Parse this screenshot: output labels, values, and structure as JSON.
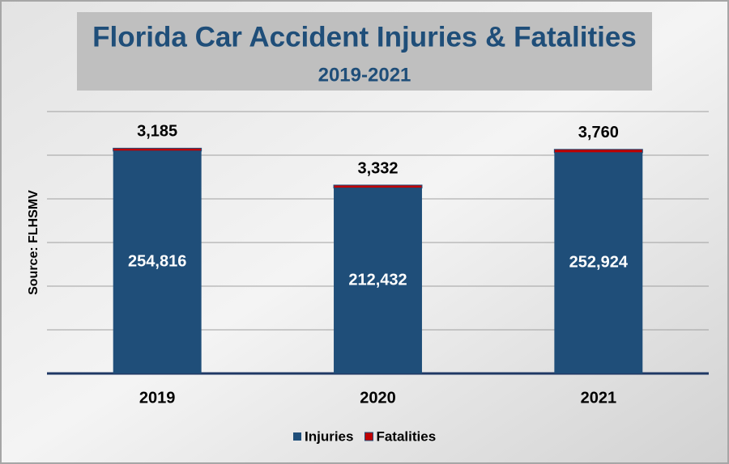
{
  "chart_data": {
    "type": "stacked_bar",
    "title": "Florida Car Accident Injuries & Fatalities",
    "subtitle": "2019-2021",
    "annotation": "Source: FLHSMV",
    "categories": [
      "2019",
      "2020",
      "2021"
    ],
    "series": [
      {
        "name": "Injuries",
        "color": "#1f4e79",
        "values": [
          254816,
          212432,
          252924
        ],
        "value_labels": [
          "254,816",
          "212,432",
          "252,924"
        ]
      },
      {
        "name": "Fatalities",
        "color": "#c00000",
        "values": [
          3185,
          3332,
          3760
        ],
        "value_labels": [
          "3,185",
          "3,332",
          "3,760"
        ]
      }
    ],
    "ylim": [
      0,
      300000
    ],
    "yticks": [
      0,
      50000,
      100000,
      150000,
      200000,
      250000,
      300000
    ],
    "grid": true,
    "legend": "bottom"
  }
}
